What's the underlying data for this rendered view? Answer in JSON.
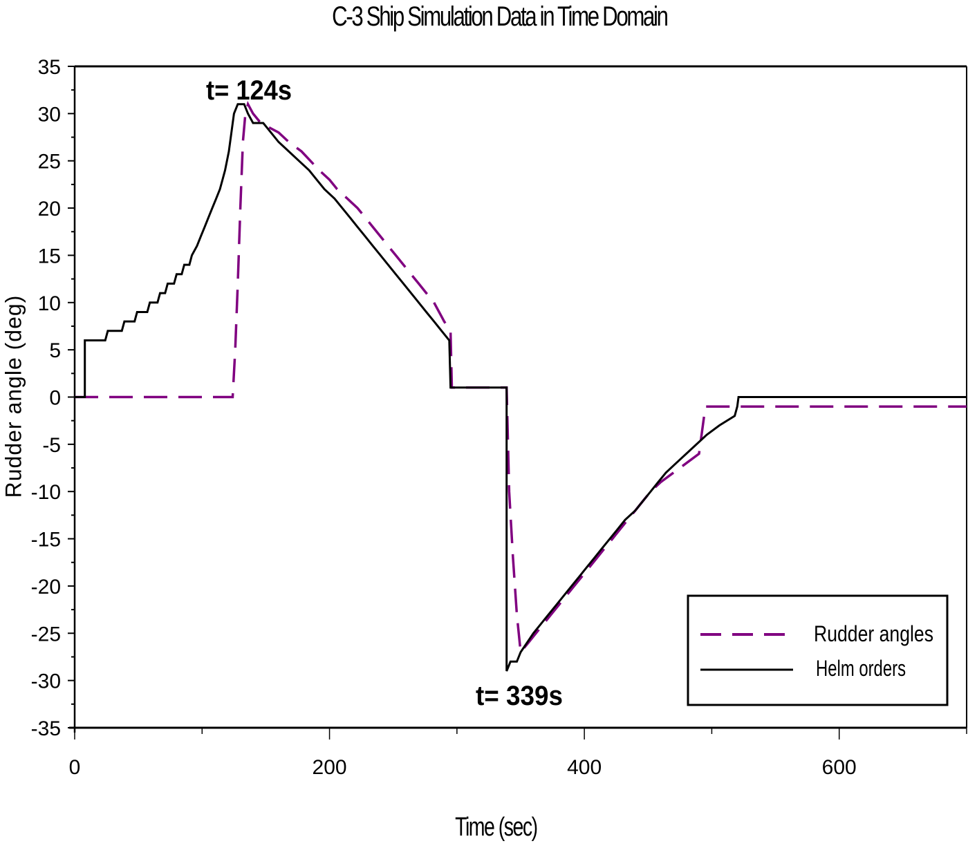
{
  "chart_data": {
    "type": "line",
    "title": "C-3 Ship Simulation Data in Time Domain",
    "xlabel": "Time (sec)",
    "ylabel": "Rudder angle (deg)",
    "xlim": [
      0,
      700
    ],
    "ylim": [
      -35,
      35
    ],
    "x_ticks": [
      0,
      200,
      400,
      600
    ],
    "x_minor_ticks": [
      100,
      300,
      500,
      700
    ],
    "y_ticks": [
      35,
      30,
      25,
      20,
      15,
      10,
      5,
      0,
      -5,
      -10,
      -15,
      -20,
      -25,
      -30,
      -35
    ],
    "grid": false,
    "legend_position": "lower right",
    "annotations": [
      {
        "text": "t= 124s",
        "x": 124,
        "y": 31
      },
      {
        "text": "t= 339s",
        "x": 339,
        "y": -29
      }
    ],
    "series": [
      {
        "name": "Rudder angles",
        "style": "dashed",
        "color": "#800080",
        "points": [
          [
            0,
            0
          ],
          [
            124,
            0
          ],
          [
            126,
            5
          ],
          [
            128,
            12
          ],
          [
            130,
            20
          ],
          [
            132,
            27
          ],
          [
            134,
            30
          ],
          [
            136,
            31
          ],
          [
            140,
            30
          ],
          [
            146,
            29
          ],
          [
            160,
            28
          ],
          [
            168,
            27
          ],
          [
            178,
            26
          ],
          [
            185,
            25
          ],
          [
            192,
            24
          ],
          [
            200,
            23
          ],
          [
            206,
            22
          ],
          [
            214,
            21
          ],
          [
            222,
            20
          ],
          [
            228,
            19
          ],
          [
            234,
            18
          ],
          [
            240,
            17
          ],
          [
            246,
            16
          ],
          [
            252,
            15
          ],
          [
            258,
            14
          ],
          [
            264,
            13
          ],
          [
            270,
            12
          ],
          [
            276,
            11
          ],
          [
            282,
            10
          ],
          [
            286,
            9
          ],
          [
            290,
            8
          ],
          [
            295,
            7
          ],
          [
            296,
            1
          ],
          [
            339,
            1
          ],
          [
            341,
            -10
          ],
          [
            344,
            -17
          ],
          [
            347,
            -23
          ],
          [
            350,
            -27
          ],
          [
            356,
            -26
          ],
          [
            362,
            -25
          ],
          [
            368,
            -24
          ],
          [
            374,
            -23
          ],
          [
            380,
            -22
          ],
          [
            386,
            -21
          ],
          [
            392,
            -20
          ],
          [
            398,
            -19
          ],
          [
            404,
            -18
          ],
          [
            410,
            -17
          ],
          [
            416,
            -16
          ],
          [
            422,
            -15
          ],
          [
            428,
            -14
          ],
          [
            434,
            -13
          ],
          [
            440,
            -12
          ],
          [
            446,
            -11
          ],
          [
            452,
            -10
          ],
          [
            460,
            -9
          ],
          [
            470,
            -8
          ],
          [
            480,
            -7
          ],
          [
            490,
            -6
          ],
          [
            495,
            -1
          ],
          [
            700,
            -1
          ]
        ]
      },
      {
        "name": "Helm orders",
        "style": "solid",
        "color": "#000000",
        "points": [
          [
            0,
            0
          ],
          [
            8,
            0
          ],
          [
            8,
            6
          ],
          [
            24,
            6
          ],
          [
            26,
            7
          ],
          [
            37,
            7
          ],
          [
            39,
            8
          ],
          [
            47,
            8
          ],
          [
            49,
            9
          ],
          [
            57,
            9
          ],
          [
            59,
            10
          ],
          [
            65,
            10
          ],
          [
            67,
            11
          ],
          [
            71,
            11
          ],
          [
            73,
            12
          ],
          [
            78,
            12
          ],
          [
            80,
            13
          ],
          [
            84,
            13
          ],
          [
            86,
            14
          ],
          [
            90,
            14
          ],
          [
            92,
            15
          ],
          [
            96,
            16
          ],
          [
            99,
            17
          ],
          [
            102,
            18
          ],
          [
            105,
            19
          ],
          [
            108,
            20
          ],
          [
            111,
            21
          ],
          [
            114,
            22
          ],
          [
            116,
            23
          ],
          [
            118,
            24
          ],
          [
            121,
            26
          ],
          [
            123,
            28
          ],
          [
            125,
            30
          ],
          [
            128,
            31
          ],
          [
            133,
            31
          ],
          [
            136,
            30
          ],
          [
            140,
            29
          ],
          [
            148,
            29
          ],
          [
            154,
            28
          ],
          [
            160,
            27
          ],
          [
            168,
            26
          ],
          [
            176,
            25
          ],
          [
            184,
            24
          ],
          [
            190,
            23
          ],
          [
            196,
            22
          ],
          [
            204,
            21
          ],
          [
            210,
            20
          ],
          [
            216,
            19
          ],
          [
            222,
            18
          ],
          [
            228,
            17
          ],
          [
            234,
            16
          ],
          [
            240,
            15
          ],
          [
            246,
            14
          ],
          [
            252,
            13
          ],
          [
            258,
            12
          ],
          [
            264,
            11
          ],
          [
            270,
            10
          ],
          [
            276,
            9
          ],
          [
            282,
            8
          ],
          [
            288,
            7
          ],
          [
            294,
            6
          ],
          [
            295,
            1
          ],
          [
            339,
            1
          ],
          [
            339,
            -29
          ],
          [
            342,
            -28
          ],
          [
            347,
            -28
          ],
          [
            350,
            -27
          ],
          [
            355,
            -26
          ],
          [
            360,
            -25
          ],
          [
            366,
            -24
          ],
          [
            372,
            -23
          ],
          [
            378,
            -22
          ],
          [
            384,
            -21
          ],
          [
            390,
            -20
          ],
          [
            396,
            -19
          ],
          [
            402,
            -18
          ],
          [
            408,
            -17
          ],
          [
            414,
            -16
          ],
          [
            420,
            -15
          ],
          [
            426,
            -14
          ],
          [
            432,
            -13
          ],
          [
            440,
            -12
          ],
          [
            446,
            -11
          ],
          [
            452,
            -10
          ],
          [
            458,
            -9
          ],
          [
            464,
            -8
          ],
          [
            472,
            -7
          ],
          [
            480,
            -6
          ],
          [
            488,
            -5
          ],
          [
            496,
            -4
          ],
          [
            506,
            -3
          ],
          [
            518,
            -2
          ],
          [
            520,
            -1
          ],
          [
            521,
            0
          ],
          [
            700,
            0
          ]
        ]
      }
    ]
  },
  "title": "C-3 Ship Simulation Data in Time Domain",
  "axes": {
    "x_label": "Time (sec)",
    "y_label": "Rudder angle (deg)",
    "x_tick_labels": [
      "0",
      "200",
      "400",
      "600"
    ],
    "y_tick_labels": [
      "35",
      "30",
      "25",
      "20",
      "15",
      "10",
      "5",
      "0",
      "-5",
      "-10",
      "-15",
      "-20",
      "-25",
      "-30",
      "-35"
    ]
  },
  "annotations": {
    "peak": "t= 124s",
    "trough": "t= 339s"
  },
  "legend": {
    "items": [
      {
        "label": "Rudder angles",
        "style": "dashed",
        "color": "#800080"
      },
      {
        "label": "Helm orders",
        "style": "solid",
        "color": "#000000"
      }
    ]
  }
}
